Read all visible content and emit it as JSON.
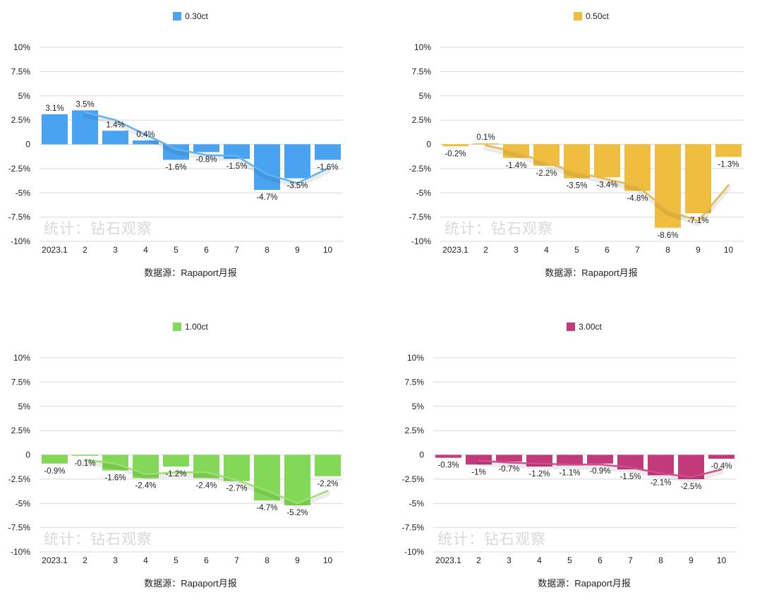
{
  "source_text": "数据源：Rapaport月报",
  "watermark_text": "统计：钻石观察",
  "chart_data": [
    {
      "type": "bar",
      "legend": "0.30ct",
      "color": "#4aa3f0",
      "categories": [
        "2023.1",
        "2",
        "3",
        "4",
        "5",
        "6",
        "7",
        "8",
        "9",
        "10"
      ],
      "values": [
        3.1,
        3.5,
        1.4,
        0.4,
        -1.6,
        -0.8,
        -1.5,
        -4.7,
        -3.5,
        -1.6
      ],
      "labels": [
        "3.1%",
        "3.5%",
        "1.4%",
        "0.4%",
        "-1.6%",
        "-0.8%",
        "-1.5%",
        "-4.7%",
        "-3.5%",
        "-1.6%"
      ],
      "trend": [
        null,
        3.3,
        2.5,
        1.0,
        -0.5,
        -1.1,
        -1.2,
        -3.1,
        -4.0,
        -2.5
      ],
      "trend_color": "#5eb4f5",
      "yticks": [
        "10%",
        "7.5%",
        "5%",
        "2.5%",
        "0",
        "-2.5%",
        "-5%",
        "-7.5%",
        "-10%"
      ],
      "ylim": [
        -10,
        10
      ]
    },
    {
      "type": "bar",
      "legend": "0.50ct",
      "color": "#f0be3e",
      "categories": [
        "2023.1",
        "2",
        "3",
        "4",
        "5",
        "6",
        "7",
        "8",
        "9",
        "10"
      ],
      "values": [
        -0.2,
        0.1,
        -1.4,
        -2.2,
        -3.5,
        -3.4,
        -4.8,
        -8.6,
        -7.1,
        -1.3
      ],
      "labels": [
        "-0.2%",
        "0.1%",
        "-1.4%",
        "-2.2%",
        "-3.5%",
        "-3.4%",
        "-4.8%",
        "-8.6%",
        "-7.1%",
        "-1.3%"
      ],
      "trend": [
        null,
        -0.1,
        -0.8,
        -1.9,
        -2.9,
        -3.6,
        -4.3,
        -6.8,
        -7.9,
        -4.2
      ],
      "trend_color": "#e8b84a",
      "yticks": [
        "10%",
        "7.5%",
        "5%",
        "2.5%",
        "0",
        "-2.5%",
        "-5%",
        "-7.5%",
        "-10%"
      ],
      "ylim": [
        -10,
        10
      ]
    },
    {
      "type": "bar",
      "legend": "1.00ct",
      "color": "#83d957",
      "categories": [
        "2023.1",
        "2",
        "3",
        "4",
        "5",
        "6",
        "7",
        "8",
        "9",
        "10"
      ],
      "values": [
        -0.9,
        -0.1,
        -1.6,
        -2.4,
        -1.2,
        -2.4,
        -2.7,
        -4.7,
        -5.2,
        -2.2
      ],
      "labels": [
        "-0.9%",
        "-0.1%",
        "-1.6%",
        "-2.4%",
        "-1.2%",
        "-2.4%",
        "-2.7%",
        "-4.7%",
        "-5.2%",
        "-2.2%"
      ],
      "trend": [
        null,
        -0.5,
        -0.9,
        -2.0,
        -1.8,
        -1.8,
        -2.6,
        -3.7,
        -5.0,
        -3.7
      ],
      "trend_color": "#9ae06f",
      "yticks": [
        "10%",
        "7.5%",
        "5%",
        "2.5%",
        "0",
        "-2.5%",
        "-5%",
        "-7.5%",
        "-10%"
      ],
      "ylim": [
        -10,
        10
      ]
    },
    {
      "type": "bar",
      "legend": "3.00ct",
      "color": "#c23a7a",
      "categories": [
        "2023.1",
        "2",
        "3",
        "4",
        "5",
        "6",
        "7",
        "8",
        "9",
        "10"
      ],
      "values": [
        -0.3,
        -1.0,
        -0.7,
        -1.2,
        -1.1,
        -0.9,
        -1.5,
        -2.1,
        -2.5,
        -0.4
      ],
      "labels": [
        "-0.3%",
        "-1%",
        "-0.7%",
        "-1.2%",
        "-1.1%",
        "-0.9%",
        "-1.5%",
        "-2.1%",
        "-2.5%",
        "-0.4%"
      ],
      "trend": [
        null,
        -0.6,
        -0.8,
        -0.9,
        -1.0,
        -1.0,
        -1.3,
        -1.9,
        -2.3,
        -1.5
      ],
      "trend_color": "#d24d8e",
      "yticks": [
        "10%",
        "7.5%",
        "5%",
        "2.5%",
        "0",
        "-2.5%",
        "-5%",
        "-7.5%",
        "-10%"
      ],
      "ylim": [
        -10,
        10
      ]
    }
  ]
}
